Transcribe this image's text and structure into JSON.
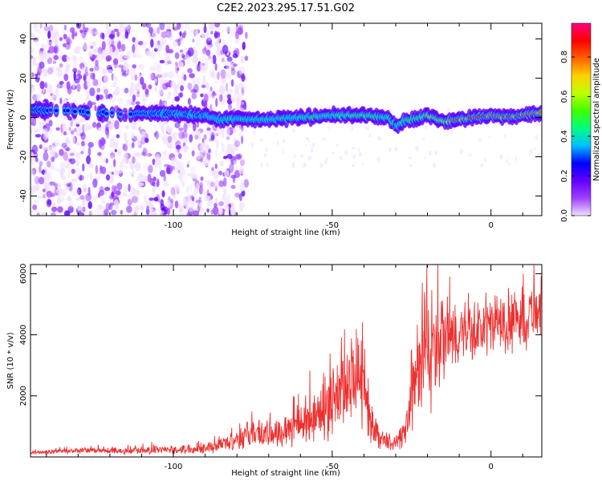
{
  "title": "C2E2.2023.295.17.51.G02",
  "chart_data": [
    {
      "type": "heatmap",
      "xlabel": "Height of straight line (km)",
      "ylabel": "Frequency (Hz)",
      "xlim": [
        -145,
        16
      ],
      "ylim": [
        -50,
        48
      ],
      "xticks": [
        -100,
        -50,
        0
      ],
      "yticks": [
        -40,
        -20,
        0,
        20,
        40
      ],
      "grid": false,
      "colorbar": {
        "label": "Normalized spectral amplitude",
        "range": [
          0,
          0.97
        ],
        "ticks": [
          0.0,
          0.2,
          0.4,
          0.6,
          0.8
        ],
        "colormap": [
          "#f0e0ff",
          "#a040ff",
          "#6000ff",
          "#0000ff",
          "#00c0ff",
          "#00ff80",
          "#40ff00",
          "#c0ff00",
          "#ffd000",
          "#ff6000",
          "#ff0000",
          "#ff0080"
        ]
      },
      "ridge": {
        "x": [
          -145,
          -130,
          -115,
          -100,
          -90,
          -85,
          -75,
          -70,
          -60,
          -50,
          -40,
          -32,
          -30,
          -28,
          -20,
          -15,
          -10,
          -5,
          0,
          5,
          10,
          16
        ],
        "frequency_hz": [
          4,
          3,
          2,
          2,
          1,
          -1,
          -1,
          -1,
          0,
          1,
          1,
          0,
          -5,
          -2,
          1,
          -2,
          -1,
          0,
          1,
          0,
          1,
          3
        ],
        "amplitude": [
          0.25,
          0.3,
          0.25,
          0.35,
          0.4,
          0.4,
          0.45,
          0.4,
          0.45,
          0.5,
          0.55,
          0.45,
          0.4,
          0.5,
          0.6,
          0.7,
          0.9,
          0.92,
          0.88,
          0.9,
          0.85,
          0.8
        ]
      },
      "background_noise_region_x": [
        -145,
        -83
      ]
    },
    {
      "type": "line",
      "xlabel": "Height of straight line (km)",
      "ylabel": "SNR (10 * v/v)",
      "xlim": [
        -145,
        16
      ],
      "ylim": [
        0,
        6300
      ],
      "xticks": [
        -100,
        -50,
        0
      ],
      "yticks": [
        2000,
        4000,
        6000
      ],
      "grid": false,
      "line_color": "#ee3030",
      "series": [
        {
          "x": [
            -145,
            -130,
            -115,
            -100,
            -90,
            -85,
            -80,
            -75,
            -70,
            -65,
            -60,
            -55,
            -50,
            -45,
            -42,
            -40,
            -38,
            -35,
            -30,
            -27,
            -25,
            -22,
            -20,
            -18,
            -15,
            -12,
            -10,
            -5,
            0,
            5,
            10,
            16
          ],
          "y": [
            150,
            200,
            200,
            230,
            300,
            400,
            600,
            800,
            700,
            900,
            1100,
            1300,
            1700,
            2400,
            2800,
            2000,
            1200,
            600,
            400,
            800,
            2000,
            3000,
            3500,
            3300,
            3800,
            3900,
            4000,
            4100,
            4300,
            4400,
            4500,
            5000
          ],
          "spread": [
            60,
            80,
            100,
            120,
            150,
            200,
            300,
            400,
            400,
            500,
            600,
            700,
            900,
            1200,
            1300,
            1000,
            600,
            300,
            200,
            500,
            1000,
            1500,
            1800,
            1400,
            1200,
            1000,
            900,
            800,
            800,
            900,
            900,
            800
          ]
        }
      ]
    }
  ]
}
